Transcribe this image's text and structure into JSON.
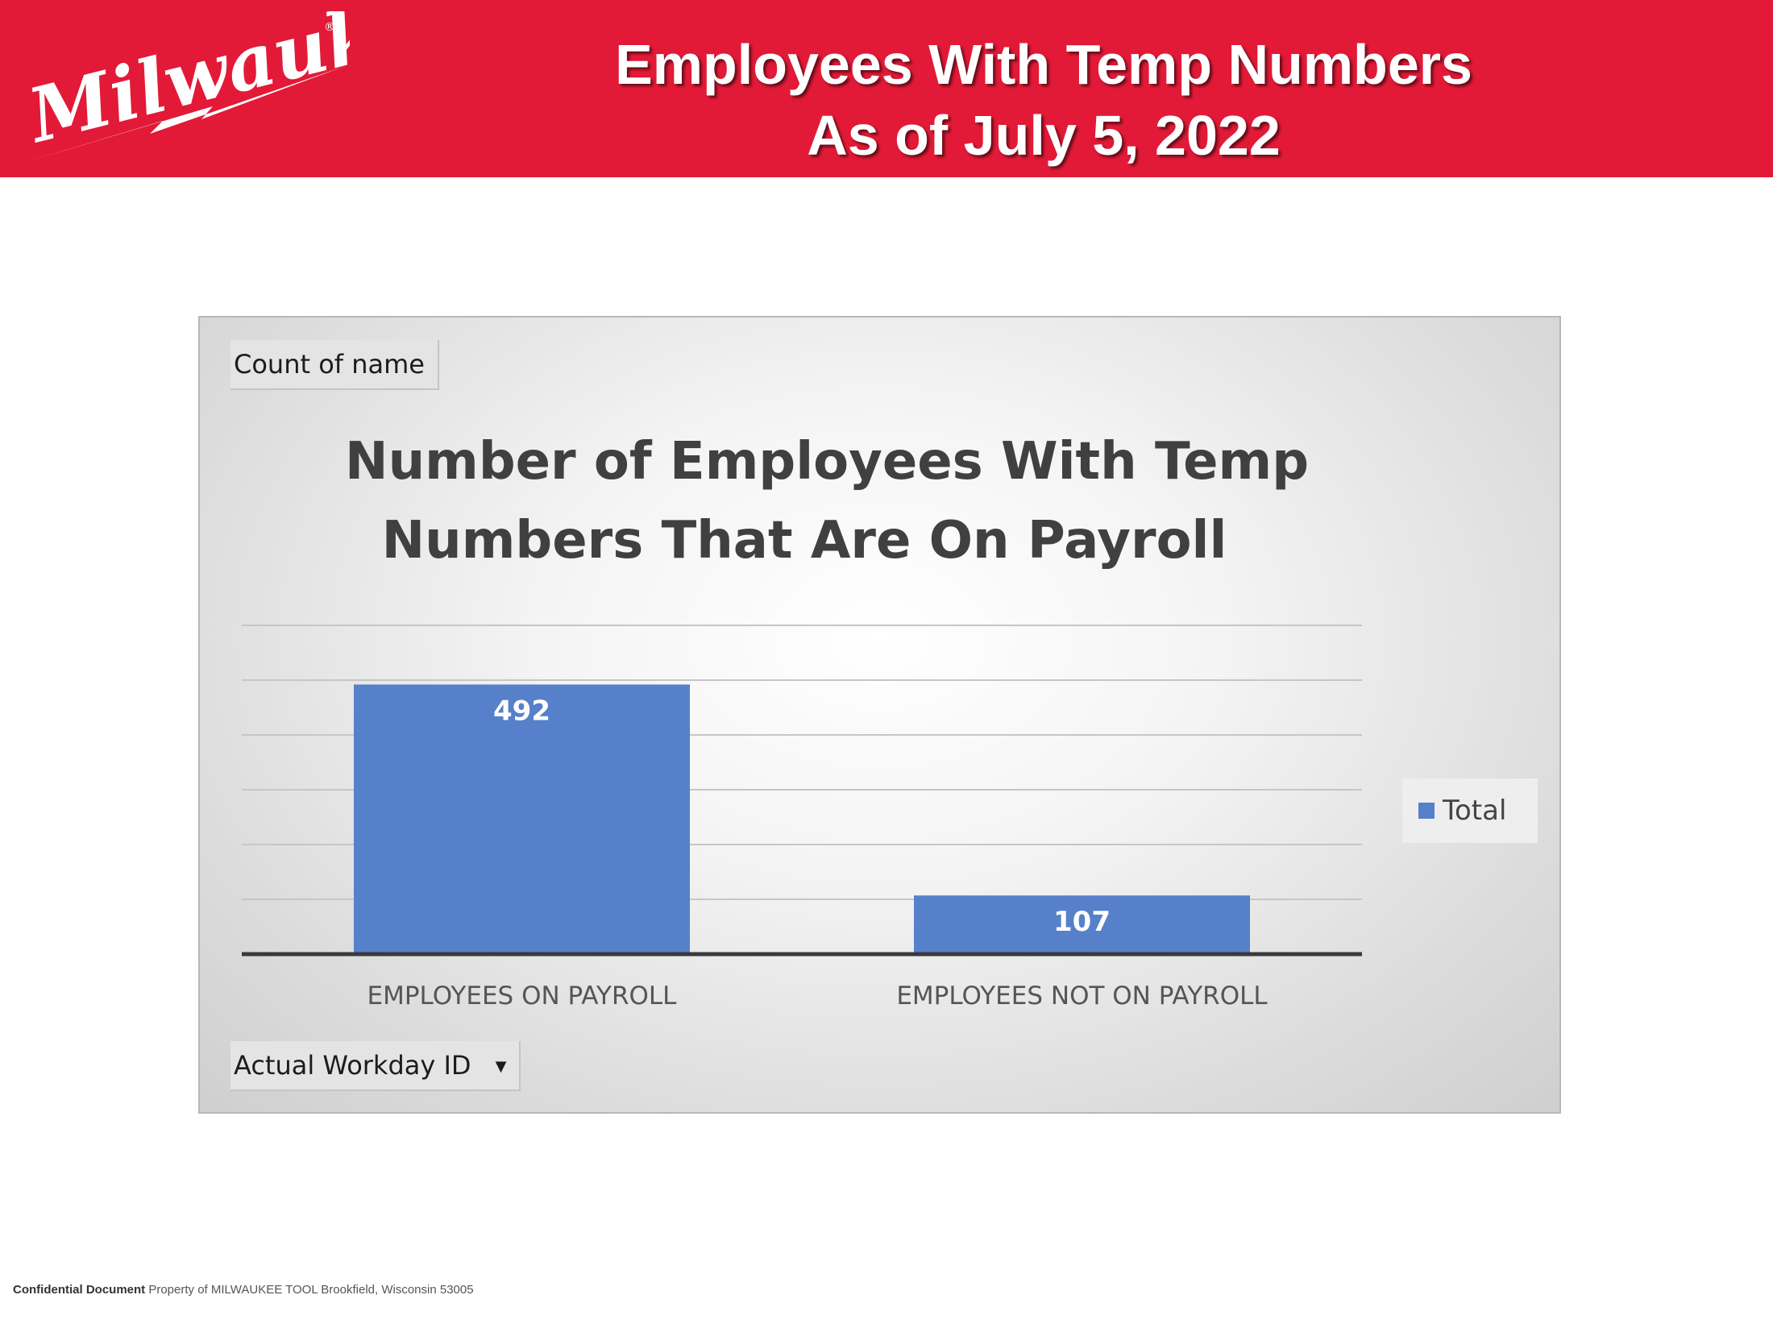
{
  "header": {
    "logo_text": "Milwaukee",
    "title_line1": "Employees With Temp Numbers",
    "title_line2": "As of July 5, 2022",
    "brand_color": "#e21a37"
  },
  "pivot": {
    "value_field_label": "Count of name",
    "axis_field_label": "Actual Workday ID"
  },
  "chart_data": {
    "type": "bar",
    "title_line1": "Number of Employees With Temp",
    "title_line2": "Numbers That Are On Payroll",
    "categories": [
      "EMPLOYEES ON PAYROLL",
      "EMPLOYEES NOT ON PAYROLL"
    ],
    "series": [
      {
        "name": "Total",
        "values": [
          492,
          107
        ],
        "color": "#5680c9"
      }
    ],
    "ylim": [
      0,
      600
    ],
    "grid": true,
    "legend_position": "right",
    "xlabel": "",
    "ylabel": ""
  },
  "footer": {
    "bold_text": "Confidential Document",
    "text": "Property of MILWAUKEE TOOL Brookfield, Wisconsin 53005"
  }
}
